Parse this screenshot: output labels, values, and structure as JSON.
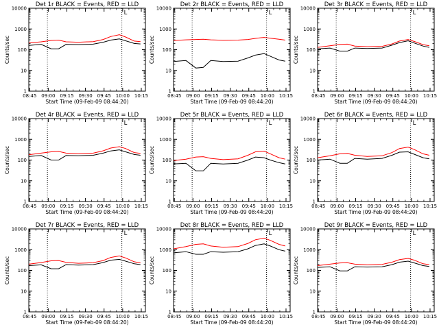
{
  "figure": {
    "ylabel": "Counts/sec",
    "xlabel": "Start Time (09-Feb-09 08:44:20)",
    "corner_mark": "L",
    "colors": {
      "events": "#000000",
      "lld": "#ff0000",
      "axes": "#000000"
    }
  },
  "chart_data": [
    {
      "type": "line",
      "title": "Det 1r BLACK = Events, RED = LLD",
      "xlabel": "Start Time (09-Feb-09 08:44:20)",
      "ylabel": "Counts/sec",
      "x_ticks": [
        "08:45",
        "09:00",
        "09:15",
        "09:30",
        "09:45",
        "10:00",
        "10:15"
      ],
      "y_ticks": [
        "1",
        "10",
        "100",
        "1000",
        "10000"
      ],
      "ylim": [
        1,
        10000
      ],
      "y_scale": "log",
      "x_minutes": [
        0,
        10,
        18,
        24,
        30,
        40,
        52,
        60,
        66,
        73,
        78,
        85,
        90
      ],
      "vlines_minutes": [
        15,
        75
      ],
      "series": [
        {
          "name": "Events",
          "color": "#000000",
          "values": [
            160,
            180,
            110,
            110,
            180,
            175,
            185,
            230,
            290,
            330,
            270,
            200,
            190
          ]
        },
        {
          "name": "LLD",
          "color": "#ff0000",
          "values": [
            210,
            240,
            280,
            290,
            240,
            230,
            245,
            310,
            430,
            530,
            410,
            260,
            245
          ]
        }
      ]
    },
    {
      "type": "line",
      "title": "Det 2r BLACK = Events, RED = LLD",
      "xlabel": "Start Time (09-Feb-09 08:44:20)",
      "ylabel": "Counts/sec",
      "x_ticks": [
        "08:45",
        "09:00",
        "09:15",
        "09:30",
        "09:45",
        "10:00",
        "10:15"
      ],
      "y_ticks": [
        "1",
        "10",
        "100",
        "1000",
        "10000"
      ],
      "ylim": [
        1,
        10000
      ],
      "y_scale": "log",
      "x_minutes": [
        0,
        10,
        18,
        24,
        30,
        40,
        52,
        60,
        66,
        73,
        78,
        85,
        90
      ],
      "vlines_minutes": [
        15,
        75
      ],
      "series": [
        {
          "name": "Events",
          "color": "#000000",
          "values": [
            27,
            30,
            13,
            14,
            30,
            27,
            28,
            40,
            55,
            65,
            48,
            32,
            28
          ]
        },
        {
          "name": "LLD",
          "color": "#ff0000",
          "values": [
            280,
            300,
            310,
            320,
            300,
            285,
            290,
            310,
            350,
            390,
            360,
            320,
            290
          ]
        }
      ]
    },
    {
      "type": "line",
      "title": "Det 3r BLACK = Events, RED = LLD",
      "xlabel": "Start Time (09-Feb-09 08:44:20)",
      "ylabel": "Counts/sec",
      "x_ticks": [
        "08:45",
        "09:00",
        "09:15",
        "09:30",
        "09:45",
        "10:00",
        "10:15"
      ],
      "y_ticks": [
        "1",
        "10",
        "100",
        "1000",
        "10000"
      ],
      "ylim": [
        1,
        10000
      ],
      "y_scale": "log",
      "x_minutes": [
        0,
        10,
        18,
        24,
        30,
        40,
        52,
        60,
        66,
        73,
        78,
        85,
        90
      ],
      "vlines_minutes": [
        15,
        75
      ],
      "series": [
        {
          "name": "Events",
          "color": "#000000",
          "values": [
            110,
            120,
            85,
            85,
            120,
            115,
            120,
            165,
            220,
            270,
            210,
            150,
            130
          ]
        },
        {
          "name": "LLD",
          "color": "#ff0000",
          "values": [
            130,
            155,
            180,
            185,
            150,
            140,
            145,
            190,
            260,
            310,
            250,
            175,
            155
          ]
        }
      ]
    },
    {
      "type": "line",
      "title": "Det 4r BLACK = Events, RED = LLD",
      "xlabel": "Start Time (09-Feb-09 08:44:20)",
      "ylabel": "Counts/sec",
      "x_ticks": [
        "08:45",
        "09:00",
        "09:15",
        "09:30",
        "09:45",
        "10:00",
        "10:15"
      ],
      "y_ticks": [
        "1",
        "10",
        "100",
        "1000",
        "10000"
      ],
      "ylim": [
        1,
        10000
      ],
      "y_scale": "log",
      "x_minutes": [
        0,
        10,
        18,
        24,
        30,
        40,
        52,
        60,
        66,
        73,
        78,
        85,
        90
      ],
      "vlines_minutes": [
        15,
        75
      ],
      "series": [
        {
          "name": "Events",
          "color": "#000000",
          "values": [
            150,
            165,
            100,
            100,
            165,
            160,
            170,
            215,
            275,
            310,
            250,
            185,
            170
          ]
        },
        {
          "name": "LLD",
          "color": "#ff0000",
          "values": [
            180,
            215,
            250,
            260,
            215,
            200,
            215,
            280,
            380,
            440,
            360,
            230,
            210
          ]
        }
      ]
    },
    {
      "type": "line",
      "title": "Det 5r BLACK = Events, RED = LLD",
      "xlabel": "Start Time (09-Feb-09 08:44:20)",
      "ylabel": "Counts/sec",
      "x_ticks": [
        "08:45",
        "09:00",
        "09:15",
        "09:30",
        "09:45",
        "10:00",
        "10:15"
      ],
      "y_ticks": [
        "1",
        "10",
        "100",
        "1000",
        "10000"
      ],
      "ylim": [
        1,
        10000
      ],
      "y_scale": "log",
      "x_minutes": [
        0,
        10,
        18,
        24,
        30,
        40,
        52,
        60,
        66,
        73,
        78,
        85,
        90
      ],
      "vlines_minutes": [
        15,
        75
      ],
      "series": [
        {
          "name": "Events",
          "color": "#000000",
          "values": [
            65,
            70,
            30,
            30,
            70,
            65,
            70,
            100,
            140,
            130,
            100,
            75,
            65
          ]
        },
        {
          "name": "LLD",
          "color": "#ff0000",
          "values": [
            95,
            110,
            140,
            145,
            120,
            105,
            115,
            170,
            250,
            270,
            200,
            130,
            110
          ]
        }
      ]
    },
    {
      "type": "line",
      "title": "Det 6r BLACK = Events, RED = LLD",
      "xlabel": "Start Time (09-Feb-09 08:44:20)",
      "ylabel": "Counts/sec",
      "x_ticks": [
        "08:45",
        "09:00",
        "09:15",
        "09:30",
        "09:45",
        "10:00",
        "10:15"
      ],
      "y_ticks": [
        "1",
        "10",
        "100",
        "1000",
        "10000"
      ],
      "ylim": [
        1,
        10000
      ],
      "y_scale": "log",
      "x_minutes": [
        0,
        10,
        18,
        24,
        30,
        40,
        52,
        60,
        66,
        73,
        78,
        85,
        90
      ],
      "vlines_minutes": [
        15,
        75
      ],
      "series": [
        {
          "name": "Events",
          "color": "#000000",
          "values": [
            100,
            110,
            70,
            70,
            120,
            110,
            120,
            170,
            240,
            250,
            190,
            130,
            115
          ]
        },
        {
          "name": "LLD",
          "color": "#ff0000",
          "values": [
            130,
            160,
            200,
            210,
            170,
            150,
            160,
            230,
            360,
            420,
            320,
            200,
            170
          ]
        }
      ]
    },
    {
      "type": "line",
      "title": "Det 7r BLACK = Events, RED = LLD",
      "xlabel": "Start Time (09-Feb-09 08:44:20)",
      "ylabel": "Counts/sec",
      "x_ticks": [
        "08:45",
        "09:00",
        "09:15",
        "09:30",
        "09:45",
        "10:00",
        "10:15"
      ],
      "y_ticks": [
        "1",
        "10",
        "100",
        "1000",
        "10000"
      ],
      "ylim": [
        1,
        10000
      ],
      "y_scale": "log",
      "x_minutes": [
        0,
        10,
        18,
        24,
        30,
        40,
        52,
        60,
        66,
        73,
        78,
        85,
        90
      ],
      "vlines_minutes": [
        15,
        75
      ],
      "series": [
        {
          "name": "Events",
          "color": "#000000",
          "values": [
            170,
            185,
            120,
            120,
            190,
            180,
            190,
            240,
            310,
            340,
            280,
            210,
            190
          ]
        },
        {
          "name": "LLD",
          "color": "#ff0000",
          "values": [
            200,
            240,
            290,
            300,
            245,
            220,
            235,
            300,
            420,
            500,
            400,
            260,
            230
          ]
        }
      ]
    },
    {
      "type": "line",
      "title": "Det 8r BLACK = Events, RED = LLD",
      "xlabel": "Start Time (09-Feb-09 08:44:20)",
      "ylabel": "Counts/sec",
      "x_ticks": [
        "08:45",
        "09:00",
        "09:15",
        "09:30",
        "09:45",
        "10:00",
        "10:15"
      ],
      "y_ticks": [
        "1",
        "10",
        "100",
        "1000",
        "10000"
      ],
      "ylim": [
        1,
        10000
      ],
      "y_scale": "log",
      "x_minutes": [
        0,
        10,
        18,
        24,
        30,
        40,
        52,
        60,
        66,
        73,
        78,
        85,
        90
      ],
      "vlines_minutes": [
        15,
        75
      ],
      "series": [
        {
          "name": "Events",
          "color": "#000000",
          "values": [
            700,
            800,
            600,
            600,
            800,
            750,
            800,
            1100,
            1600,
            1900,
            1500,
            1000,
            850
          ]
        },
        {
          "name": "LLD",
          "color": "#ff0000",
          "values": [
            1100,
            1400,
            1800,
            1900,
            1500,
            1300,
            1400,
            2000,
            3000,
            3600,
            2800,
            1800,
            1500
          ]
        }
      ]
    },
    {
      "type": "line",
      "title": "Det 9r BLACK = Events, RED = LLD",
      "xlabel": "Start Time (09-Feb-09 08:44:20)",
      "ylabel": "Counts/sec",
      "x_ticks": [
        "08:45",
        "09:00",
        "09:15",
        "09:30",
        "09:45",
        "10:00",
        "10:15"
      ],
      "y_ticks": [
        "1",
        "10",
        "100",
        "1000",
        "10000"
      ],
      "ylim": [
        1,
        10000
      ],
      "y_scale": "log",
      "x_minutes": [
        0,
        10,
        18,
        24,
        30,
        40,
        52,
        60,
        66,
        73,
        78,
        85,
        90
      ],
      "vlines_minutes": [
        15,
        75
      ],
      "series": [
        {
          "name": "Events",
          "color": "#000000",
          "values": [
            140,
            150,
            95,
            95,
            150,
            145,
            150,
            190,
            250,
            280,
            230,
            170,
            155
          ]
        },
        {
          "name": "LLD",
          "color": "#ff0000",
          "values": [
            170,
            200,
            230,
            235,
            200,
            185,
            195,
            250,
            330,
            380,
            310,
            210,
            190
          ]
        }
      ]
    }
  ]
}
